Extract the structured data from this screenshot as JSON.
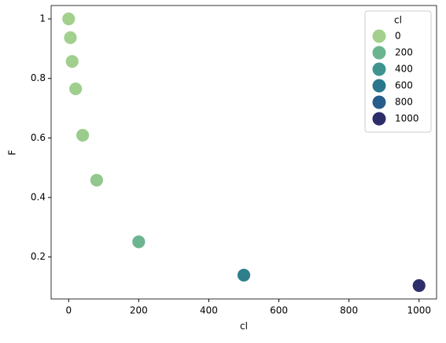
{
  "chart_data": {
    "type": "scatter",
    "x_label": "cl",
    "y_label": "F",
    "x": [
      0,
      5,
      10,
      20,
      40,
      80,
      200,
      500,
      1000
    ],
    "values": [
      1.0,
      0.937,
      0.857,
      0.765,
      0.609,
      0.458,
      0.251,
      0.139,
      0.104
    ],
    "colors": [
      "#a3d08d",
      "#a2d08d",
      "#a1cf8d",
      "#9fce8d",
      "#9bcc8d",
      "#92c78d",
      "#6db490",
      "#2c7f8b",
      "#2c2e6c"
    ],
    "xlim": [
      -50,
      1050
    ],
    "xticks": [
      0,
      200,
      400,
      600,
      800,
      1000
    ],
    "ylim": [
      0.059,
      1.045
    ],
    "yticks": [
      0.2,
      0.4,
      0.6,
      0.8,
      1.0
    ],
    "legend": {
      "title": "cl",
      "corner": "upper right",
      "entries": [
        {
          "label": 0,
          "color": "#a3d08d"
        },
        {
          "label": 200,
          "color": "#6cb38f"
        },
        {
          "label": 400,
          "color": "#3f9490"
        },
        {
          "label": 600,
          "color": "#28778c"
        },
        {
          "label": 800,
          "color": "#265d8a"
        },
        {
          "label": 1000,
          "color": "#2c2e6c"
        }
      ]
    }
  }
}
